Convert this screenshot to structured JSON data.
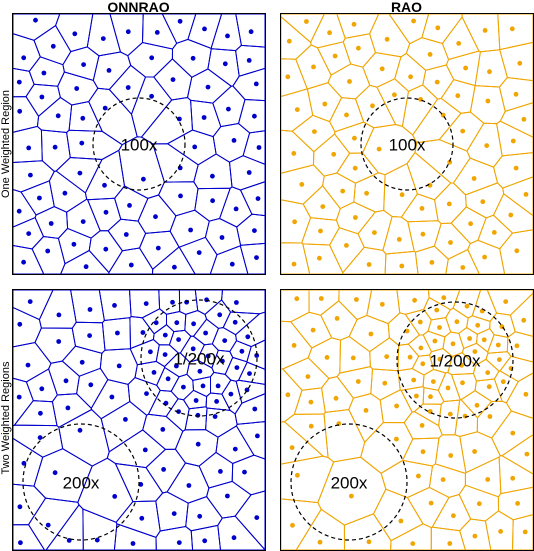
{
  "columns": [
    {
      "label": "ONNRAO",
      "color": "#0000cc"
    },
    {
      "label": "RAO",
      "color": "#f0a500"
    }
  ],
  "rows": [
    {
      "label": "One Weighted Region"
    },
    {
      "label": "Two Weighted Regions"
    }
  ],
  "panels": [
    {
      "id": "onnrao-one",
      "method": "ONNRAO",
      "regions": [
        {
          "label": "100x"
        }
      ]
    },
    {
      "id": "rao-one",
      "method": "RAO",
      "regions": [
        {
          "label": "100x"
        }
      ]
    },
    {
      "id": "onnrao-two",
      "method": "ONNRAO",
      "regions": [
        {
          "label": "1/200x"
        },
        {
          "label": "200x"
        }
      ]
    },
    {
      "id": "rao-two",
      "method": "RAO",
      "regions": [
        {
          "label": "1/200x"
        },
        {
          "label": "200x"
        }
      ]
    }
  ]
}
